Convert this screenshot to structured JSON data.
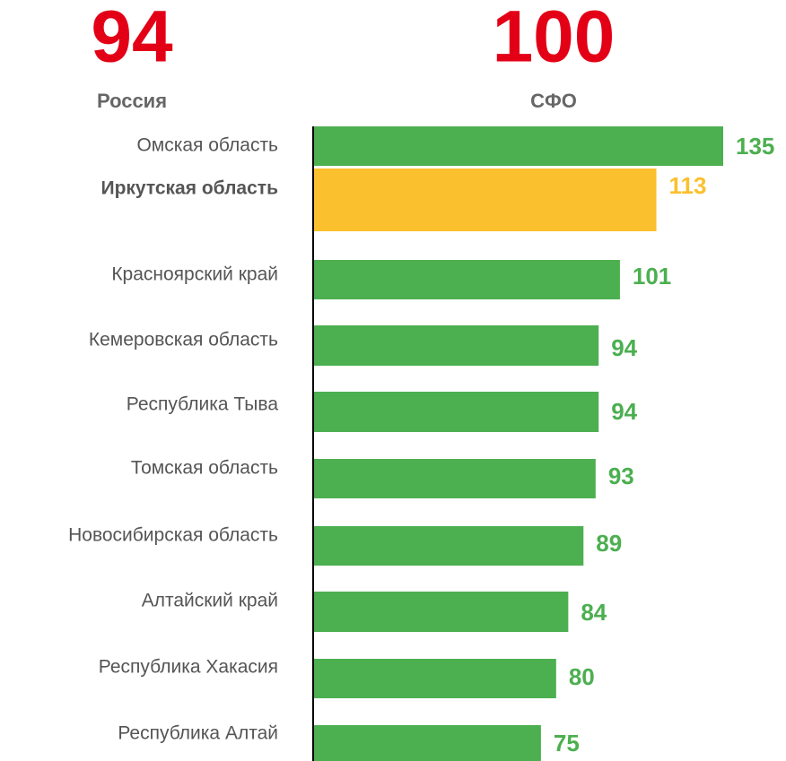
{
  "summary": [
    {
      "value": 94,
      "label": "Россия"
    },
    {
      "value": 100,
      "label": "СФО"
    }
  ],
  "chart_data": {
    "type": "hbar",
    "categories": [
      "Омская область",
      "Иркутская область",
      "Красноярский край",
      "Кемеровская область",
      "Республика Тыва",
      "Томская область",
      "Новосибирская область",
      "Алтайский край",
      "Республика Хакасия",
      "Республика Алтай"
    ],
    "values": [
      135,
      113,
      101,
      94,
      94,
      93,
      89,
      84,
      80,
      75
    ],
    "color": "#4caf50",
    "colors": [
      "#4caf50",
      "#fbc02d",
      "#4caf50",
      "#4caf50",
      "#4caf50",
      "#4caf50",
      "#4caf50",
      "#4caf50",
      "#4caf50",
      "#4caf50"
    ],
    "xlim": [
      0,
      135
    ]
  }
}
